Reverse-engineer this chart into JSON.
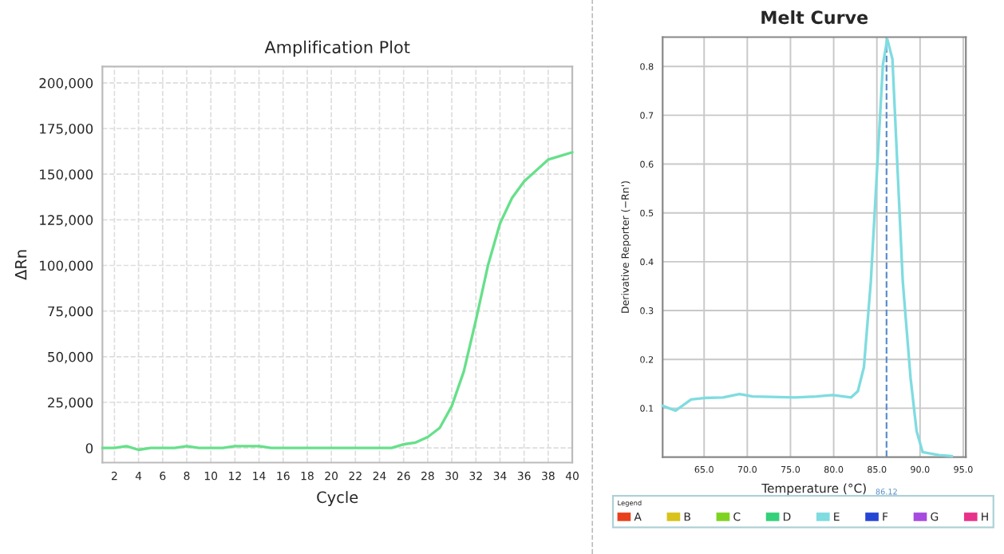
{
  "chart_data": [
    {
      "type": "line",
      "title": "Amplification Plot",
      "xlabel": "Cycle",
      "ylabel": "ΔRn",
      "grid": true,
      "legend": false,
      "x": [
        1,
        2,
        3,
        4,
        5,
        6,
        7,
        8,
        9,
        10,
        11,
        12,
        13,
        14,
        15,
        16,
        17,
        18,
        19,
        20,
        21,
        22,
        23,
        24,
        25,
        26,
        27,
        28,
        29,
        30,
        31,
        32,
        33,
        34,
        35,
        36,
        37,
        38,
        39,
        40
      ],
      "series": [
        {
          "color": "#66e08a",
          "values": [
            0,
            0,
            1000,
            -1000,
            0,
            0,
            0,
            1000,
            0,
            0,
            0,
            1000,
            1000,
            1000,
            0,
            0,
            0,
            0,
            0,
            0,
            0,
            0,
            0,
            0,
            0,
            2000,
            3000,
            6000,
            11000,
            23000,
            42000,
            70000,
            100000,
            123000,
            137000,
            146000,
            152000,
            158000,
            160000,
            162000
          ]
        }
      ],
      "xlim": [
        1,
        40
      ],
      "xticks": [
        2,
        4,
        6,
        8,
        10,
        12,
        14,
        16,
        18,
        20,
        22,
        24,
        26,
        28,
        30,
        32,
        34,
        36,
        38,
        40
      ],
      "ylim": [
        -8000,
        209000
      ],
      "yticks": [
        {
          "value": 0,
          "label": "0"
        },
        {
          "value": 25000,
          "label": "25,000"
        },
        {
          "value": 50000,
          "label": "50,000"
        },
        {
          "value": 75000,
          "label": "75,000"
        },
        {
          "value": 100000,
          "label": "100,000"
        },
        {
          "value": 125000,
          "label": "125,000"
        },
        {
          "value": 150000,
          "label": "150,000"
        },
        {
          "value": 175000,
          "label": "175,000"
        },
        {
          "value": 200000,
          "label": "200,000"
        }
      ]
    },
    {
      "type": "line",
      "title": "Melt Curve",
      "xlabel": "Temperature (°C)",
      "ylabel": "Derivative Reporter (−Rn')",
      "grid": true,
      "legend": "bottom",
      "legend_title": "Legend",
      "x": [
        60.2,
        61.7,
        63.5,
        65.0,
        67.2,
        69.1,
        70.6,
        75.5,
        78.0,
        79.9,
        82.0,
        82.8,
        83.5,
        84.3,
        85.7,
        86.2,
        86.8,
        88.0,
        88.9,
        89.6,
        90.3,
        92.2,
        93.7
      ],
      "series": [
        {
          "name": "A",
          "color": "#e8401c",
          "values": [
            null,
            null,
            null,
            null,
            null,
            null,
            null,
            null,
            null,
            null,
            null,
            null,
            null,
            null,
            null,
            null,
            null,
            null,
            null,
            null,
            null,
            null,
            null
          ]
        },
        {
          "name": "B",
          "color": "#d9c21a",
          "values": [
            null,
            null,
            null,
            null,
            null,
            null,
            null,
            null,
            null,
            null,
            null,
            null,
            null,
            null,
            null,
            null,
            null,
            null,
            null,
            null,
            null,
            null,
            null
          ]
        },
        {
          "name": "C",
          "color": "#7ed321",
          "values": [
            null,
            null,
            null,
            null,
            null,
            null,
            null,
            null,
            null,
            null,
            null,
            null,
            null,
            null,
            null,
            null,
            null,
            null,
            null,
            null,
            null,
            null,
            null
          ]
        },
        {
          "name": "D",
          "color": "#33d17a",
          "values": [
            null,
            null,
            null,
            null,
            null,
            null,
            null,
            null,
            null,
            null,
            null,
            null,
            null,
            null,
            null,
            null,
            null,
            null,
            null,
            null,
            null,
            null,
            null
          ]
        },
        {
          "name": "E",
          "color": "#7fdce0",
          "values": [
            0.105,
            0.095,
            0.118,
            0.121,
            0.122,
            0.129,
            0.124,
            0.122,
            0.124,
            0.127,
            0.122,
            0.135,
            0.184,
            0.359,
            0.804,
            0.856,
            0.815,
            0.359,
            0.162,
            0.053,
            0.01,
            0.004,
            0.002
          ]
        },
        {
          "name": "F",
          "color": "#2546d4",
          "values": [
            null,
            null,
            null,
            null,
            null,
            null,
            null,
            null,
            null,
            null,
            null,
            null,
            null,
            null,
            null,
            null,
            null,
            null,
            null,
            null,
            null,
            null,
            null
          ]
        },
        {
          "name": "G",
          "color": "#a64ae0",
          "values": [
            null,
            null,
            null,
            null,
            null,
            null,
            null,
            null,
            null,
            null,
            null,
            null,
            null,
            null,
            null,
            null,
            null,
            null,
            null,
            null,
            null,
            null,
            null
          ]
        },
        {
          "name": "H",
          "color": "#e8318a",
          "values": [
            null,
            null,
            null,
            null,
            null,
            null,
            null,
            null,
            null,
            null,
            null,
            null,
            null,
            null,
            null,
            null,
            null,
            null,
            null,
            null,
            null,
            null,
            null
          ]
        }
      ],
      "xlim": [
        60.2,
        95.3
      ],
      "xticks": [
        {
          "value": 65,
          "label": "65.0"
        },
        {
          "value": 70,
          "label": "70.0"
        },
        {
          "value": 75,
          "label": "75.0"
        },
        {
          "value": 80,
          "label": "80.0"
        },
        {
          "value": 85,
          "label": "85.0"
        },
        {
          "value": 90,
          "label": "90.0"
        },
        {
          "value": 95,
          "label": "95.0"
        }
      ],
      "ylim": [
        0,
        0.86
      ],
      "yticks": [
        0.1,
        0.2,
        0.3,
        0.4,
        0.5,
        0.6,
        0.7,
        0.8
      ],
      "ref_lines": [
        {
          "axis": "x",
          "value": 86.12,
          "label": "86.12",
          "color": "#5b8fc9",
          "line_style": "dashed"
        }
      ]
    }
  ]
}
